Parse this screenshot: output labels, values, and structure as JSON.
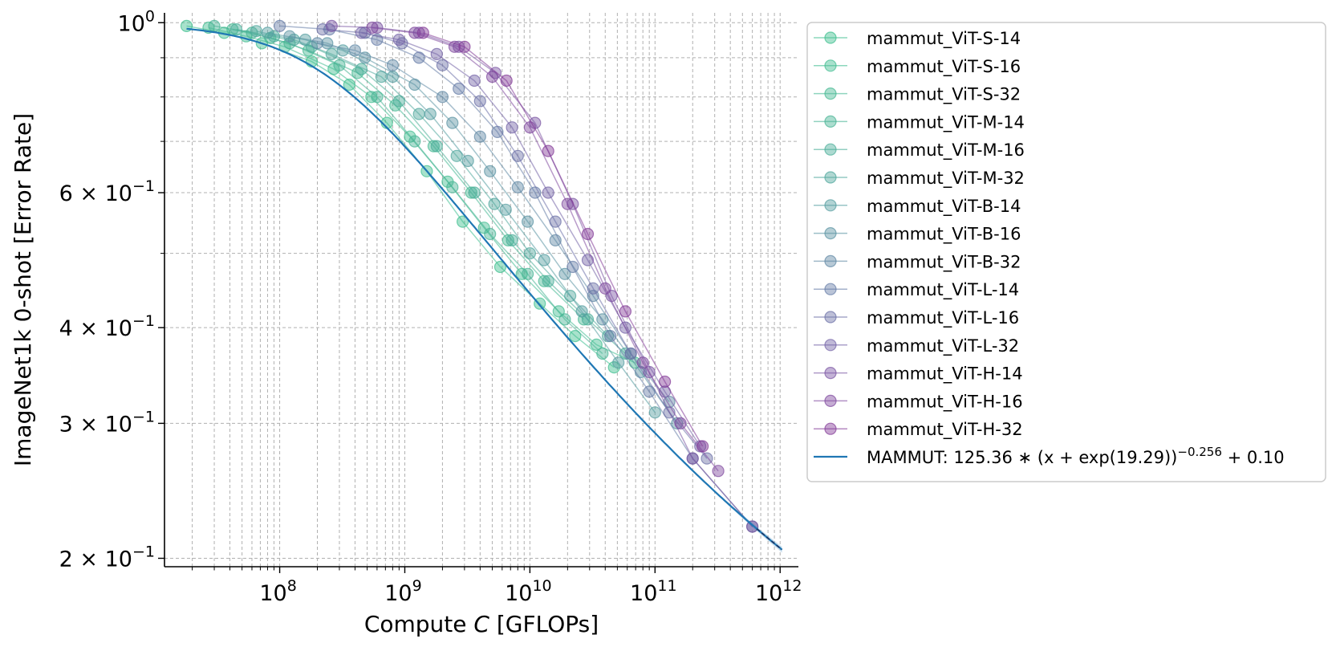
{
  "chart_data": {
    "type": "line",
    "xscale": "log",
    "yscale": "log",
    "xlim": [
      12000000.0,
      1400000000000.0
    ],
    "ylim": [
      0.195,
      1.03
    ],
    "xlabel_prefix": "Compute ",
    "xlabel_var": "C",
    "xlabel_suffix": " [GFLOPs]",
    "ylabel": "ImageNet1k 0-shot [Error Rate]",
    "legend_position": "right",
    "x_ticks": [
      {
        "base": "10",
        "exp": "8",
        "value": 100000000.0
      },
      {
        "base": "10",
        "exp": "9",
        "value": 1000000000.0
      },
      {
        "base": "10",
        "exp": "10",
        "value": 10000000000.0
      },
      {
        "base": "10",
        "exp": "11",
        "value": 100000000000.0
      },
      {
        "base": "10",
        "exp": "12",
        "value": 1000000000000.0
      }
    ],
    "y_ticks": [
      {
        "value": 1.0,
        "mant": "",
        "base": "10",
        "exp": "0"
      },
      {
        "value": 0.6,
        "mant": "6 × ",
        "base": "10",
        "exp": "−1"
      },
      {
        "value": 0.4,
        "mant": "4 × ",
        "base": "10",
        "exp": "−1"
      },
      {
        "value": 0.3,
        "mant": "3 × ",
        "base": "10",
        "exp": "−1"
      },
      {
        "value": 0.2,
        "mant": "2 × ",
        "base": "10",
        "exp": "−1"
      }
    ],
    "y_minor": [
      0.5,
      0.7,
      0.8,
      0.9
    ],
    "series": [
      {
        "name": "mammut_ViT-S-14",
        "color": "#3dbf8f",
        "x": [
          18000000.0,
          36000000.0,
          72000000.0,
          180000000.0,
          360000000.0,
          720000000.0,
          1500000000.0,
          2900000000.0,
          5800000000.0,
          12000000000.0,
          23000000000.0,
          47000000000.0
        ],
        "y": [
          0.99,
          0.97,
          0.94,
          0.89,
          0.83,
          0.74,
          0.64,
          0.55,
          0.48,
          0.43,
          0.39,
          0.355
        ]
      },
      {
        "name": "mammut_ViT-S-16",
        "color": "#40bc90",
        "x": [
          27000000.0,
          54000000.0,
          110000000.0,
          270000000.0,
          540000000.0,
          1100000000.0,
          2200000000.0,
          4300000000.0,
          8600000000.0,
          17000000000.0,
          34000000000.0,
          69000000000.0
        ],
        "y": [
          0.985,
          0.96,
          0.93,
          0.87,
          0.8,
          0.71,
          0.62,
          0.54,
          0.47,
          0.42,
          0.38,
          0.36
        ]
      },
      {
        "name": "mammut_ViT-S-32",
        "color": "#44b892",
        "x": [
          42000000.0,
          84000000.0,
          170000000.0,
          420000000.0,
          840000000.0,
          1700000000.0,
          3400000000.0,
          6700000000.0,
          13000000000.0,
          27000000000.0
        ],
        "y": [
          0.98,
          0.955,
          0.92,
          0.86,
          0.78,
          0.69,
          0.6,
          0.52,
          0.46,
          0.41
        ]
      },
      {
        "name": "mammut_ViT-M-14",
        "color": "#47b394",
        "x": [
          30000000.0,
          60000000.0,
          120000000.0,
          300000000.0,
          600000000.0,
          1200000000.0,
          2400000000.0,
          4800000000.0,
          9600000000.0,
          19000000000.0,
          38000000000.0
        ],
        "y": [
          0.99,
          0.97,
          0.94,
          0.88,
          0.8,
          0.7,
          0.61,
          0.53,
          0.47,
          0.41,
          0.37
        ]
      },
      {
        "name": "mammut_ViT-M-16",
        "color": "#4aae98",
        "x": [
          45000000.0,
          90000000.0,
          180000000.0,
          450000000.0,
          900000000.0,
          1800000000.0,
          3600000000.0,
          7200000000.0,
          14000000000.0,
          29000000000.0,
          58000000000.0
        ],
        "y": [
          0.98,
          0.96,
          0.93,
          0.87,
          0.79,
          0.69,
          0.6,
          0.52,
          0.46,
          0.41,
          0.37
        ]
      },
      {
        "name": "mammut_ViT-M-32",
        "color": "#4fa79c",
        "x": [
          65000000.0,
          130000000.0,
          260000000.0,
          650000000.0,
          1300000000.0,
          2600000000.0,
          5200000000.0,
          10000000000.0,
          21000000000.0,
          42000000000.0
        ],
        "y": [
          0.975,
          0.95,
          0.91,
          0.85,
          0.76,
          0.67,
          0.58,
          0.5,
          0.44,
          0.39
        ]
      },
      {
        "name": "mammut_ViT-B-14",
        "color": "#549da0",
        "x": [
          80000000.0,
          160000000.0,
          320000000.0,
          800000000.0,
          1600000000.0,
          3200000000.0,
          6400000000.0,
          13000000000.0,
          26000000000.0,
          51000000000.0,
          100000000000.0
        ],
        "y": [
          0.97,
          0.95,
          0.92,
          0.85,
          0.76,
          0.66,
          0.57,
          0.49,
          0.42,
          0.36,
          0.31
        ]
      },
      {
        "name": "mammut_ViT-B-16",
        "color": "#5a93a2",
        "x": [
          120000000.0,
          240000000.0,
          480000000.0,
          1200000000.0,
          2400000000.0,
          4800000000.0,
          9600000000.0,
          19000000000.0,
          38000000000.0,
          77000000000.0,
          150000000000.0
        ],
        "y": [
          0.96,
          0.94,
          0.9,
          0.83,
          0.74,
          0.64,
          0.55,
          0.47,
          0.41,
          0.35,
          0.3
        ]
      },
      {
        "name": "mammut_ViT-B-32",
        "color": "#5f88a4",
        "x": [
          200000000.0,
          400000000.0,
          800000000.0,
          2000000000.0,
          4000000000.0,
          8000000000.0,
          16000000000.0,
          32000000000.0,
          64000000000.0,
          130000000000.0
        ],
        "y": [
          0.94,
          0.92,
          0.88,
          0.8,
          0.71,
          0.61,
          0.52,
          0.44,
          0.37,
          0.32
        ]
      },
      {
        "name": "mammut_ViT-L-14",
        "color": "#657ca6",
        "x": [
          100000000.0,
          250000000.0,
          600000000.0,
          1300000000.0,
          2700000000.0,
          5500000000.0,
          11000000000.0,
          22000000000.0,
          44000000000.0,
          90000000000.0,
          200000000000.0,
          600000000000.0
        ],
        "y": [
          0.99,
          0.98,
          0.95,
          0.9,
          0.82,
          0.72,
          0.6,
          0.48,
          0.39,
          0.33,
          0.27,
          0.22
        ]
      },
      {
        "name": "mammut_ViT-L-16",
        "color": "#6c70a7",
        "x": [
          220000000.0,
          480000000.0,
          950000000.0,
          2000000000.0,
          4000000000.0,
          8000000000.0,
          16000000000.0,
          32000000000.0,
          64000000000.0,
          130000000000.0,
          260000000000.0
        ],
        "y": [
          0.98,
          0.97,
          0.94,
          0.88,
          0.79,
          0.67,
          0.55,
          0.45,
          0.37,
          0.31,
          0.27
        ]
      },
      {
        "name": "mammut_ViT-L-32",
        "color": "#7363a6",
        "x": [
          450000000.0,
          900000000.0,
          1800000000.0,
          3600000000.0,
          7200000000.0,
          14000000000.0,
          29000000000.0,
          58000000000.0,
          120000000000.0,
          230000000000.0
        ],
        "y": [
          0.97,
          0.95,
          0.91,
          0.84,
          0.73,
          0.6,
          0.49,
          0.4,
          0.33,
          0.28
        ]
      },
      {
        "name": "mammut_ViT-H-14",
        "color": "#7a55a3",
        "x": [
          260000000.0,
          600000000.0,
          1300000000.0,
          2700000000.0,
          5300000000.0,
          11000000000.0,
          22000000000.0,
          45000000000.0,
          90000000000.0,
          200000000000.0,
          600000000000.0
        ],
        "y": [
          0.99,
          0.985,
          0.97,
          0.93,
          0.86,
          0.74,
          0.58,
          0.44,
          0.35,
          0.27,
          0.22
        ]
      },
      {
        "name": "mammut_ViT-H-16",
        "color": "#7f489e",
        "x": [
          550000000.0,
          1200000000.0,
          2500000000.0,
          5000000000.0,
          10000000000.0,
          20000000000.0,
          40000000000.0,
          80000000000.0,
          160000000000.0,
          320000000000.0
        ],
        "y": [
          0.985,
          0.97,
          0.93,
          0.85,
          0.73,
          0.58,
          0.45,
          0.36,
          0.3,
          0.26
        ]
      },
      {
        "name": "mammut_ViT-H-32",
        "color": "#833a97",
        "x": [
          1400000000.0,
          3000000000.0,
          6500000000.0,
          14000000000.0,
          29000000000.0,
          58000000000.0,
          120000000000.0,
          240000000000.0
        ],
        "y": [
          0.97,
          0.93,
          0.84,
          0.68,
          0.53,
          0.42,
          0.34,
          0.28
        ]
      }
    ],
    "fit": {
      "name": "MAMMUT: ",
      "coef": 125.36,
      "exp_arg": 19.29,
      "power": -0.256,
      "offset": 0.1,
      "color": "#1f77b4",
      "formula_main": "125.36 ∗ (x + exp(19.29))",
      "formula_sup": "−0.256",
      "formula_tail": " + 0.10"
    }
  }
}
